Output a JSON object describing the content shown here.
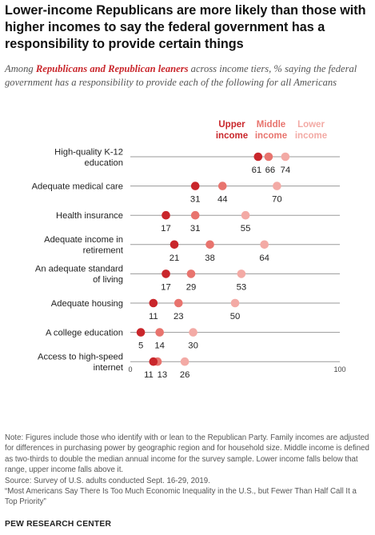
{
  "title": "Lower-income Republicans are more likely than those with higher incomes to say the federal government has a responsibility to provide certain things",
  "subtitle": {
    "prefix": "Among ",
    "highlight": "Republicans and Republican leaners",
    "suffix": " across income tiers, % saying the federal government has a responsibility to provide each of the following for all Americans"
  },
  "legend": [
    {
      "line1": "Upper",
      "line2": "income",
      "color": "#c9262b"
    },
    {
      "line1": "Middle",
      "line2": "income",
      "color": "#e8746e"
    },
    {
      "line1": "Lower",
      "line2": "income",
      "color": "#f3aaa5"
    }
  ],
  "chart_data": {
    "type": "dot",
    "xlim": [
      0,
      100
    ],
    "x_ticks": [
      0,
      100
    ],
    "categories": [
      "High-quality K-12 education",
      "Adequate medical care",
      "Health insurance",
      "Adequate income in retirement",
      "An adequate standard of living",
      "Adequate housing",
      "A college education",
      "Access to high-speed internet"
    ],
    "series": [
      {
        "name": "Upper income",
        "color": "#c9262b",
        "values": [
          61,
          31,
          17,
          21,
          17,
          11,
          5,
          11
        ]
      },
      {
        "name": "Middle income",
        "color": "#e8746e",
        "values": [
          66,
          44,
          31,
          38,
          29,
          23,
          14,
          13
        ]
      },
      {
        "name": "Lower income",
        "color": "#f3aaa5",
        "values": [
          74,
          70,
          55,
          64,
          53,
          50,
          30,
          26
        ]
      }
    ]
  },
  "notes": {
    "note": "Note: Figures include those who identify with or lean to the Republican Party. Family incomes are adjusted for differences in purchasing power by geographic region and for household size. Middle income is defined as two-thirds to double the median annual income for the survey sample. Lower income falls below that range, upper income falls above it.",
    "source": "Source: Survey of U.S. adults conducted Sept. 16-29, 2019.",
    "report": "“Most Americans Say There Is Too Much Economic Inequality in the U.S., but Fewer Than Half Call It a Top Priority”"
  },
  "credit": "PEW RESEARCH CENTER"
}
